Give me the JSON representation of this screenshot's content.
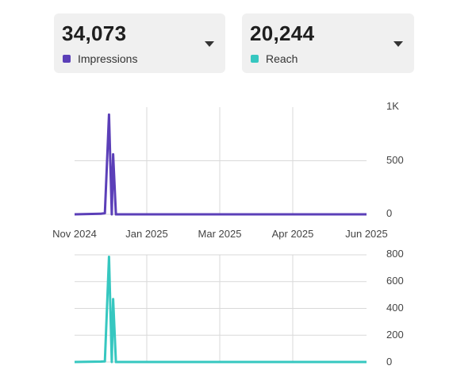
{
  "metrics": [
    {
      "value": "34,073",
      "label": "Impressions",
      "color": "#5b3fb8"
    },
    {
      "value": "20,244",
      "label": "Reach",
      "color": "#36c7c0"
    }
  ],
  "chart_data": [
    {
      "type": "line",
      "name": "Impressions",
      "color": "#5b3fb8",
      "x_labels": [
        "Nov 2024",
        "Jan 2025",
        "Mar 2025",
        "Apr 2025",
        "Jun 2025"
      ],
      "y_ticks": [
        "0",
        "500",
        "1K"
      ],
      "ylim": [
        0,
        1000
      ],
      "grid": true,
      "points": [
        {
          "date": "2024-11-01",
          "value": 0
        },
        {
          "date": "2024-11-20",
          "value": 5
        },
        {
          "date": "2024-11-23",
          "value": 10
        },
        {
          "date": "2024-11-26",
          "value": 930
        },
        {
          "date": "2024-11-28",
          "value": 0
        },
        {
          "date": "2024-11-29",
          "value": 560
        },
        {
          "date": "2024-12-01",
          "value": 0
        },
        {
          "date": "2025-06-01",
          "value": 0
        }
      ]
    },
    {
      "type": "line",
      "name": "Reach",
      "color": "#36c7c0",
      "x_labels": [],
      "y_ticks": [
        "0",
        "200",
        "400",
        "600",
        "800"
      ],
      "ylim": [
        0,
        800
      ],
      "grid": true,
      "points": [
        {
          "date": "2024-11-01",
          "value": 0
        },
        {
          "date": "2024-11-20",
          "value": 3
        },
        {
          "date": "2024-11-23",
          "value": 5
        },
        {
          "date": "2024-11-26",
          "value": 785
        },
        {
          "date": "2024-11-28",
          "value": 0
        },
        {
          "date": "2024-11-29",
          "value": 470
        },
        {
          "date": "2024-12-01",
          "value": 0
        },
        {
          "date": "2025-06-01",
          "value": 0
        }
      ]
    }
  ]
}
